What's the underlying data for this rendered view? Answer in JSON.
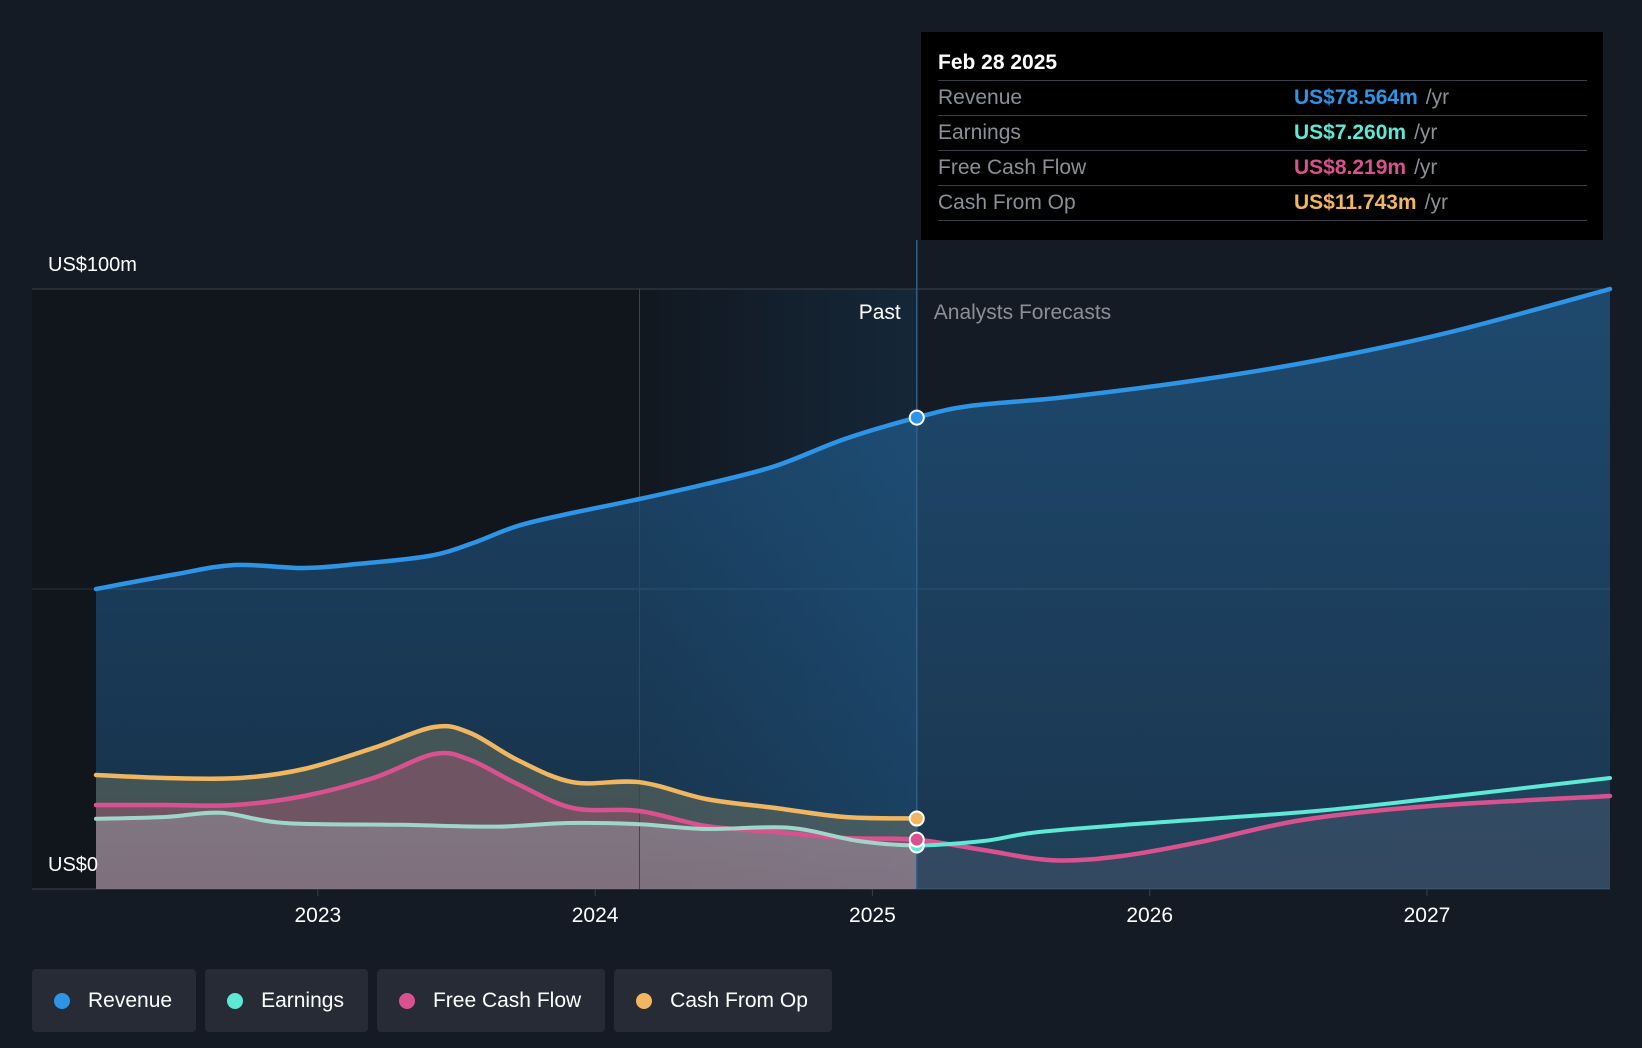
{
  "tooltip": {
    "date": "Feb 28 2025",
    "rows": [
      {
        "label": "Revenue",
        "value": "US$78.564m",
        "unit": "/yr",
        "color": "#2d94e6"
      },
      {
        "label": "Earnings",
        "value": "US$7.260m",
        "unit": "/yr",
        "color": "#5ee8d6"
      },
      {
        "label": "Free Cash Flow",
        "value": "US$8.219m",
        "unit": "/yr",
        "color": "#d9528f"
      },
      {
        "label": "Cash From Op",
        "value": "US$11.743m",
        "unit": "/yr",
        "color": "#f0b660"
      }
    ]
  },
  "legend": [
    {
      "label": "Revenue",
      "color": "#2d94e6"
    },
    {
      "label": "Earnings",
      "color": "#5ee8d6"
    },
    {
      "label": "Free Cash Flow",
      "color": "#d9528f"
    },
    {
      "label": "Cash From Op",
      "color": "#f0b660"
    }
  ],
  "chart_data": {
    "type": "line",
    "y_labels": {
      "top": "US$100m",
      "bottom": "US$0"
    },
    "ylim": [
      0,
      100
    ],
    "xlim": [
      2022.2,
      2027.66
    ],
    "past_label": "Past",
    "forecast_label": "Analysts Forecasts",
    "divider_x": 2025.16,
    "shade_start_x": 2024.16,
    "x_ticks": [
      {
        "value": 2023,
        "label": "2023"
      },
      {
        "value": 2024,
        "label": "2024"
      },
      {
        "value": 2025,
        "label": "2025"
      },
      {
        "value": 2026,
        "label": "2026"
      },
      {
        "value": 2027,
        "label": "2027"
      }
    ],
    "series": [
      {
        "name": "Revenue",
        "color": "#2d94e6",
        "points": [
          [
            2022.2,
            50
          ],
          [
            2022.48,
            52.4
          ],
          [
            2022.7,
            54
          ],
          [
            2022.95,
            53.5
          ],
          [
            2023.15,
            54.2
          ],
          [
            2023.4,
            55.5
          ],
          [
            2023.55,
            57.5
          ],
          [
            2023.72,
            60.5
          ],
          [
            2023.9,
            62.5
          ],
          [
            2024.16,
            65
          ],
          [
            2024.4,
            67.5
          ],
          [
            2024.65,
            70.5
          ],
          [
            2024.9,
            75
          ],
          [
            2025.16,
            78.564
          ],
          [
            2025.35,
            80.5
          ],
          [
            2025.7,
            82
          ],
          [
            2026.2,
            85
          ],
          [
            2026.65,
            88.5
          ],
          [
            2027.1,
            93
          ],
          [
            2027.66,
            100
          ]
        ]
      },
      {
        "name": "Earnings",
        "color": "#5ee8d6",
        "points": [
          [
            2022.2,
            11.7
          ],
          [
            2022.45,
            12
          ],
          [
            2022.65,
            12.7
          ],
          [
            2022.88,
            11
          ],
          [
            2023.3,
            10.7
          ],
          [
            2023.65,
            10.4
          ],
          [
            2023.9,
            11
          ],
          [
            2024.16,
            10.8
          ],
          [
            2024.4,
            10
          ],
          [
            2024.7,
            10.2
          ],
          [
            2024.95,
            8
          ],
          [
            2025.16,
            7.26
          ],
          [
            2025.4,
            8
          ],
          [
            2025.6,
            9.5
          ],
          [
            2026,
            11
          ],
          [
            2026.6,
            13
          ],
          [
            2027.1,
            15.5
          ],
          [
            2027.66,
            18.5
          ]
        ]
      },
      {
        "name": "Free Cash Flow",
        "color": "#d9528f",
        "points": [
          [
            2022.2,
            14
          ],
          [
            2022.45,
            14
          ],
          [
            2022.7,
            14
          ],
          [
            2022.95,
            15.5
          ],
          [
            2023.2,
            18.5
          ],
          [
            2023.42,
            22.5
          ],
          [
            2023.55,
            21.5
          ],
          [
            2023.72,
            17.5
          ],
          [
            2023.92,
            13.5
          ],
          [
            2024.16,
            13
          ],
          [
            2024.4,
            10.5
          ],
          [
            2024.65,
            9.5
          ],
          [
            2024.9,
            8.5
          ],
          [
            2025.16,
            8.219
          ],
          [
            2025.4,
            6.5
          ],
          [
            2025.65,
            4.8
          ],
          [
            2025.9,
            5.5
          ],
          [
            2026.2,
            8
          ],
          [
            2026.55,
            11.5
          ],
          [
            2027,
            13.8
          ],
          [
            2027.66,
            15.5
          ]
        ]
      },
      {
        "name": "Cash From Op",
        "color": "#f0b660",
        "points": [
          [
            2022.2,
            19
          ],
          [
            2022.45,
            18.5
          ],
          [
            2022.72,
            18.5
          ],
          [
            2022.95,
            20
          ],
          [
            2023.2,
            23.5
          ],
          [
            2023.42,
            27
          ],
          [
            2023.55,
            26
          ],
          [
            2023.72,
            21.5
          ],
          [
            2023.92,
            17.8
          ],
          [
            2024.16,
            17.8
          ],
          [
            2024.4,
            15
          ],
          [
            2024.65,
            13.5
          ],
          [
            2024.9,
            12
          ],
          [
            2025.16,
            11.743
          ]
        ]
      }
    ]
  }
}
